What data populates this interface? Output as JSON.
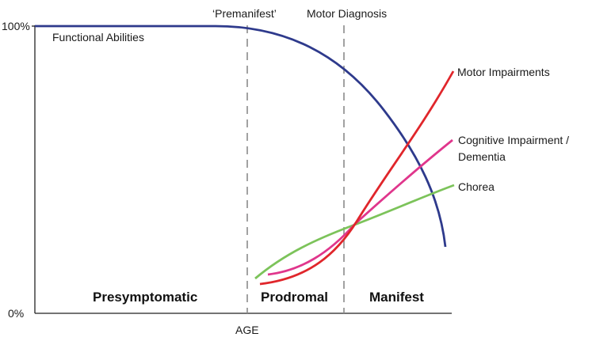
{
  "labels": {
    "y_top": "100%",
    "y_bottom": "0%",
    "x_axis": "AGE",
    "premanifest": "‘Premanifest’",
    "motor_diagnosis": "Motor Diagnosis",
    "functional_abilities": "Functional Abilities",
    "motor_impairments": "Motor Impairments",
    "cognitive_line1": "Cognitive Impairment /",
    "cognitive_line2": "Dementia",
    "chorea": "Chorea"
  },
  "phases": {
    "presymptomatic": "Presymptomatic",
    "prodromal": "Prodromal",
    "manifest": "Manifest"
  },
  "colors": {
    "functional_abilities": "#2e3a8c",
    "motor_impairments": "#e0262b",
    "cognitive_impairment": "#e0368c",
    "chorea": "#7cc35a",
    "axis": "#222222",
    "divider": "#8a8a8a"
  }
}
